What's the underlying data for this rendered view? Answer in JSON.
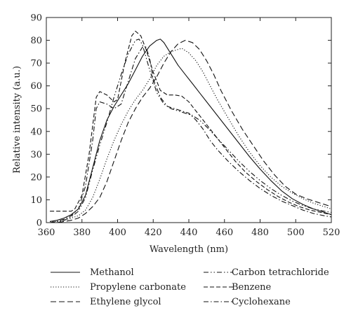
{
  "chart_data": {
    "type": "line",
    "title": "",
    "xlabel": "Wavelength (nm)",
    "ylabel": "Relative intensity (a.u.)",
    "xlim": [
      360,
      520
    ],
    "ylim": [
      0,
      90
    ],
    "xticks": [
      360,
      380,
      400,
      420,
      440,
      460,
      480,
      500,
      520
    ],
    "yticks": [
      0,
      10,
      20,
      30,
      40,
      50,
      60,
      70,
      80,
      90
    ],
    "grid": false,
    "legend_position": "bottom",
    "series": [
      {
        "name": "Methanol",
        "style": "solid",
        "points": [
          [
            362,
            0.5
          ],
          [
            366,
            1
          ],
          [
            370,
            2
          ],
          [
            374,
            3.5
          ],
          [
            378,
            6
          ],
          [
            382,
            12
          ],
          [
            386,
            24
          ],
          [
            390,
            36
          ],
          [
            394,
            45
          ],
          [
            398,
            51
          ],
          [
            402,
            56
          ],
          [
            406,
            61
          ],
          [
            410,
            67
          ],
          [
            414,
            73
          ],
          [
            418,
            77.5
          ],
          [
            422,
            80
          ],
          [
            424,
            80.5
          ],
          [
            426,
            79
          ],
          [
            430,
            74
          ],
          [
            434,
            69
          ],
          [
            438,
            65
          ],
          [
            442,
            61
          ],
          [
            446,
            57
          ],
          [
            450,
            53
          ],
          [
            456,
            47
          ],
          [
            462,
            41
          ],
          [
            468,
            35
          ],
          [
            474,
            29
          ],
          [
            480,
            23.5
          ],
          [
            486,
            18.5
          ],
          [
            492,
            14
          ],
          [
            498,
            10.5
          ],
          [
            504,
            8
          ],
          [
            510,
            6
          ],
          [
            516,
            4.5
          ],
          [
            520,
            3.5
          ]
        ]
      },
      {
        "name": "Propylene carbonate",
        "style": "dotted",
        "points": [
          [
            362,
            0.5
          ],
          [
            366,
            0.5
          ],
          [
            370,
            1
          ],
          [
            374,
            2
          ],
          [
            378,
            3
          ],
          [
            382,
            5.5
          ],
          [
            386,
            11
          ],
          [
            390,
            19
          ],
          [
            394,
            28
          ],
          [
            398,
            36
          ],
          [
            402,
            43
          ],
          [
            406,
            49
          ],
          [
            410,
            54
          ],
          [
            414,
            58
          ],
          [
            418,
            63
          ],
          [
            422,
            69
          ],
          [
            426,
            73
          ],
          [
            430,
            75
          ],
          [
            434,
            76
          ],
          [
            436,
            76.5
          ],
          [
            440,
            74.5
          ],
          [
            444,
            71
          ],
          [
            448,
            66
          ],
          [
            452,
            60
          ],
          [
            456,
            54
          ],
          [
            462,
            46
          ],
          [
            468,
            38
          ],
          [
            474,
            31
          ],
          [
            480,
            25
          ],
          [
            486,
            20
          ],
          [
            492,
            16
          ],
          [
            498,
            13
          ],
          [
            504,
            10.5
          ],
          [
            510,
            8.5
          ],
          [
            516,
            7
          ],
          [
            520,
            6
          ]
        ]
      },
      {
        "name": "Ethylene glycol",
        "style": "dashed-long",
        "points": [
          [
            362,
            0
          ],
          [
            366,
            0
          ],
          [
            370,
            0.5
          ],
          [
            374,
            1
          ],
          [
            378,
            2
          ],
          [
            382,
            4
          ],
          [
            386,
            7
          ],
          [
            390,
            11
          ],
          [
            394,
            18
          ],
          [
            398,
            27
          ],
          [
            402,
            36
          ],
          [
            406,
            44
          ],
          [
            410,
            50
          ],
          [
            414,
            55
          ],
          [
            418,
            59
          ],
          [
            422,
            64
          ],
          [
            426,
            70
          ],
          [
            430,
            75
          ],
          [
            434,
            78.5
          ],
          [
            438,
            80
          ],
          [
            442,
            79
          ],
          [
            446,
            76
          ],
          [
            450,
            71
          ],
          [
            454,
            65
          ],
          [
            458,
            58
          ],
          [
            464,
            49
          ],
          [
            470,
            41
          ],
          [
            476,
            34
          ],
          [
            482,
            27
          ],
          [
            488,
            21
          ],
          [
            494,
            16
          ],
          [
            500,
            12.5
          ],
          [
            506,
            10.5
          ],
          [
            512,
            9
          ],
          [
            520,
            7
          ]
        ]
      },
      {
        "name": "Carbon tetrachloride",
        "style": "dash-dot-dot",
        "points": [
          [
            362,
            0
          ],
          [
            366,
            0
          ],
          [
            370,
            1
          ],
          [
            374,
            2.5
          ],
          [
            378,
            5
          ],
          [
            382,
            11
          ],
          [
            386,
            23
          ],
          [
            390,
            34
          ],
          [
            394,
            44
          ],
          [
            398,
            55
          ],
          [
            402,
            65
          ],
          [
            406,
            74
          ],
          [
            410,
            80
          ],
          [
            412,
            80.5
          ],
          [
            414,
            78
          ],
          [
            418,
            67
          ],
          [
            422,
            57
          ],
          [
            426,
            52
          ],
          [
            430,
            50
          ],
          [
            434,
            49
          ],
          [
            438,
            48
          ],
          [
            442,
            47
          ],
          [
            446,
            45
          ],
          [
            450,
            42
          ],
          [
            456,
            37
          ],
          [
            462,
            32
          ],
          [
            468,
            27
          ],
          [
            474,
            22.5
          ],
          [
            480,
            18.5
          ],
          [
            486,
            15
          ],
          [
            492,
            12
          ],
          [
            498,
            9.5
          ],
          [
            504,
            7.5
          ],
          [
            510,
            6
          ],
          [
            516,
            5
          ],
          [
            520,
            4.5
          ]
        ]
      },
      {
        "name": "Benzene",
        "style": "dashed",
        "points": [
          [
            362,
            5
          ],
          [
            366,
            5
          ],
          [
            370,
            5
          ],
          [
            374,
            5
          ],
          [
            376,
            6
          ],
          [
            380,
            12
          ],
          [
            384,
            30
          ],
          [
            388,
            55
          ],
          [
            390,
            57.5
          ],
          [
            394,
            56
          ],
          [
            398,
            53
          ],
          [
            400,
            54
          ],
          [
            404,
            70
          ],
          [
            408,
            82
          ],
          [
            410,
            84
          ],
          [
            413,
            82
          ],
          [
            416,
            76
          ],
          [
            420,
            66
          ],
          [
            424,
            58
          ],
          [
            428,
            56
          ],
          [
            432,
            56
          ],
          [
            436,
            55.5
          ],
          [
            440,
            53
          ],
          [
            444,
            49
          ],
          [
            448,
            45
          ],
          [
            454,
            39
          ],
          [
            460,
            33
          ],
          [
            466,
            27
          ],
          [
            472,
            22
          ],
          [
            478,
            18
          ],
          [
            484,
            14.5
          ],
          [
            490,
            11.5
          ],
          [
            496,
            9
          ],
          [
            502,
            7
          ],
          [
            508,
            5.5
          ],
          [
            514,
            4.5
          ],
          [
            520,
            3.5
          ]
        ]
      },
      {
        "name": "Cyclohexane",
        "style": "dash-dot",
        "points": [
          [
            362,
            0
          ],
          [
            366,
            0.5
          ],
          [
            370,
            1.5
          ],
          [
            374,
            3
          ],
          [
            378,
            6
          ],
          [
            382,
            16
          ],
          [
            386,
            36
          ],
          [
            388,
            50
          ],
          [
            390,
            53
          ],
          [
            394,
            52
          ],
          [
            398,
            50
          ],
          [
            402,
            52
          ],
          [
            406,
            62
          ],
          [
            410,
            72
          ],
          [
            414,
            77
          ],
          [
            416,
            77
          ],
          [
            418,
            72
          ],
          [
            420,
            63
          ],
          [
            424,
            55
          ],
          [
            428,
            51
          ],
          [
            432,
            50
          ],
          [
            436,
            49
          ],
          [
            440,
            48
          ],
          [
            444,
            45
          ],
          [
            448,
            41
          ],
          [
            452,
            36
          ],
          [
            456,
            32
          ],
          [
            462,
            27
          ],
          [
            468,
            22.5
          ],
          [
            474,
            18.5
          ],
          [
            480,
            15
          ],
          [
            486,
            12
          ],
          [
            492,
            9.5
          ],
          [
            498,
            7.5
          ],
          [
            504,
            5.5
          ],
          [
            510,
            4
          ],
          [
            516,
            3
          ],
          [
            520,
            2.5
          ]
        ]
      }
    ]
  },
  "legend": {
    "entries": [
      "Methanol",
      "Propylene carbonate",
      "Ethylene glycol",
      "Carbon tetrachloride",
      "Benzene",
      "Cyclohexane"
    ]
  }
}
